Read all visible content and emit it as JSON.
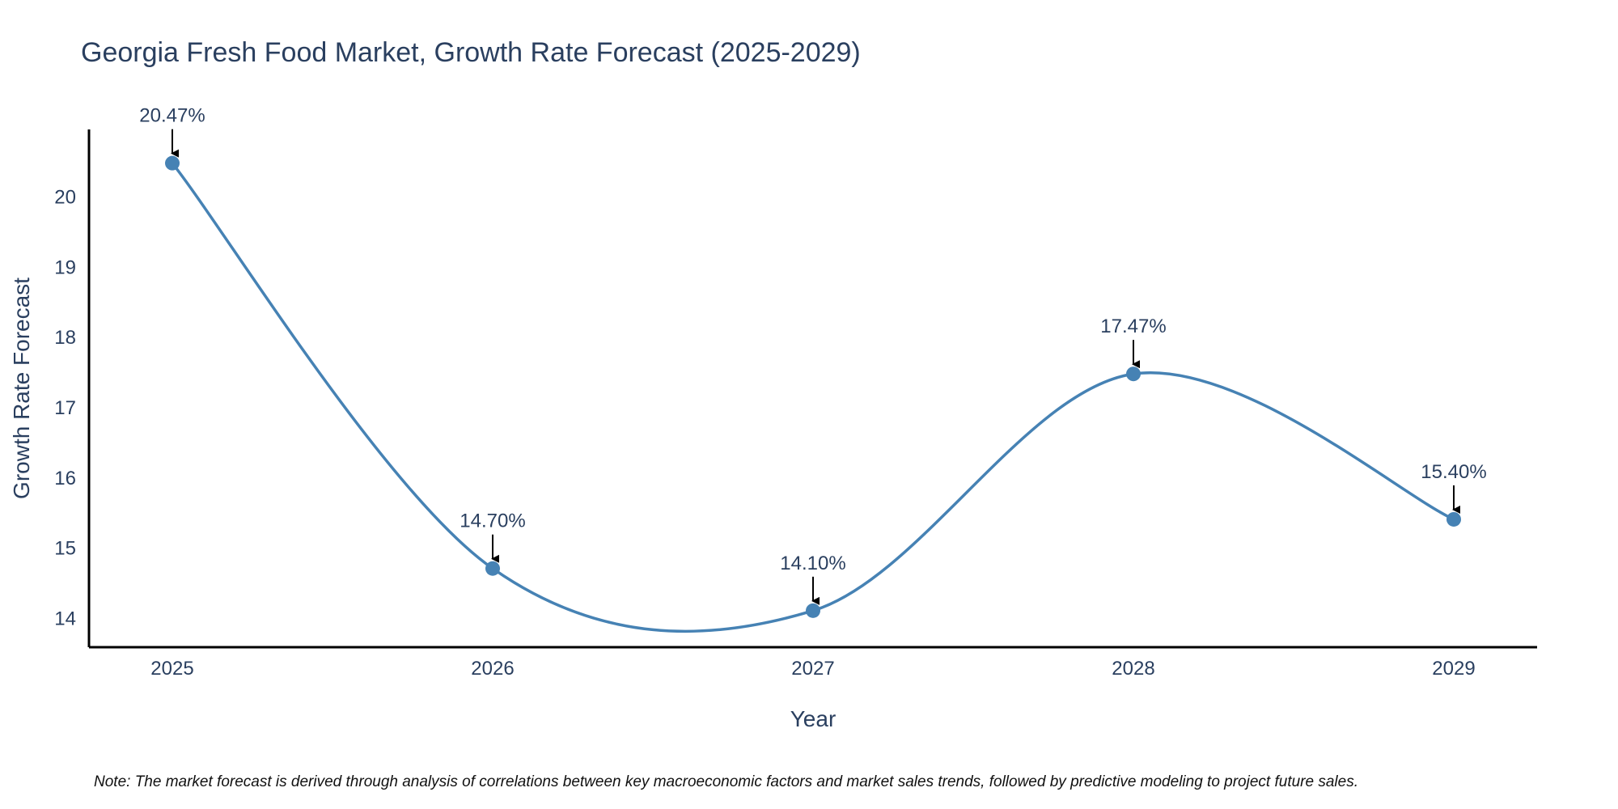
{
  "chart_data": {
    "type": "line",
    "title": "Georgia Fresh Food Market, Growth Rate Forecast (2025-2029)",
    "xlabel": "Year",
    "ylabel": "Growth Rate Forecast",
    "categories": [
      "2025",
      "2026",
      "2027",
      "2028",
      "2029"
    ],
    "series": [
      {
        "name": "Growth Rate Forecast",
        "values": [
          20.47,
          14.7,
          14.1,
          17.47,
          15.4
        ],
        "labels": [
          "20.47%",
          "14.70%",
          "14.10%",
          "17.47%",
          "15.40%"
        ],
        "color": "#4682b4",
        "line_shape": "spline"
      }
    ],
    "yticks": [
      14,
      15,
      16,
      17,
      18,
      19,
      20
    ],
    "ylim": [
      13.58,
      20.95
    ],
    "grid": false,
    "note": "Note: The market forecast is derived through analysis of correlations between key macroeconomic factors and market sales trends, followed by predictive modeling to project future sales."
  },
  "colors": {
    "line": "#4682b4",
    "text": "#2a3f5f",
    "axis": "#000000",
    "arrow": "#000000"
  }
}
